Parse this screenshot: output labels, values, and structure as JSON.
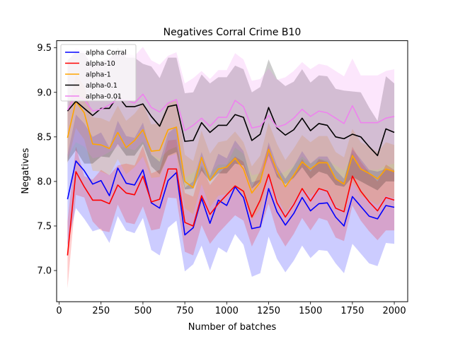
{
  "chart_data": {
    "type": "line",
    "title": "Negatives Corral Crime B10",
    "xlabel": "Number of batches",
    "ylabel": "Negatives",
    "xlim": [
      -15,
      2080
    ],
    "ylim": [
      6.65,
      9.58
    ],
    "xticks": [
      0,
      250,
      500,
      750,
      1000,
      1250,
      1500,
      1750,
      2000
    ],
    "yticks": [
      7.0,
      7.5,
      8.0,
      8.5,
      9.0,
      9.5
    ],
    "xtick_labels": [
      "0",
      "250",
      "500",
      "750",
      "1000",
      "1250",
      "1500",
      "1750",
      "2000"
    ],
    "ytick_labels": [
      "7.0",
      "7.5",
      "8.0",
      "8.5",
      "9.0",
      "9.5"
    ],
    "grid": false,
    "legend_position": "top-left",
    "shaded_band": "mean ± band per series",
    "x": [
      50,
      100,
      150,
      200,
      250,
      300,
      350,
      400,
      450,
      500,
      550,
      600,
      650,
      700,
      750,
      800,
      850,
      900,
      950,
      1000,
      1050,
      1100,
      1150,
      1200,
      1250,
      1300,
      1350,
      1400,
      1450,
      1500,
      1550,
      1600,
      1650,
      1700,
      1750,
      1800,
      1850,
      1900,
      1950,
      2000
    ],
    "series": [
      {
        "name": "alpha Corral",
        "color": "#0000ff",
        "values": [
          7.8,
          8.23,
          8.12,
          7.97,
          8.01,
          7.84,
          8.15,
          7.98,
          7.96,
          8.13,
          7.76,
          7.7,
          8.01,
          8.1,
          7.4,
          7.48,
          7.81,
          7.53,
          7.79,
          7.73,
          7.94,
          7.82,
          7.47,
          7.49,
          7.92,
          7.66,
          7.51,
          7.64,
          7.82,
          7.67,
          7.75,
          7.76,
          7.6,
          7.5,
          7.83,
          7.72,
          7.61,
          7.58,
          7.73,
          7.71
        ],
        "lower": [
          7.28,
          7.7,
          7.58,
          7.44,
          7.47,
          7.31,
          7.61,
          7.45,
          7.42,
          7.59,
          7.23,
          7.17,
          7.48,
          7.56,
          6.99,
          7.07,
          7.28,
          7.0,
          7.26,
          7.2,
          7.41,
          7.29,
          6.93,
          6.97,
          7.38,
          7.13,
          6.98,
          7.11,
          7.28,
          7.14,
          7.23,
          7.22,
          7.08,
          6.97,
          7.3,
          7.19,
          7.08,
          7.05,
          7.31,
          7.3
        ],
        "upper": [
          8.3,
          8.75,
          8.65,
          8.5,
          8.55,
          8.38,
          8.68,
          8.51,
          8.49,
          8.66,
          8.3,
          8.22,
          8.54,
          8.62,
          7.93,
          8.0,
          8.33,
          8.06,
          8.31,
          8.26,
          8.46,
          8.34,
          7.99,
          8.02,
          8.44,
          8.18,
          8.03,
          8.17,
          8.34,
          8.2,
          8.28,
          8.28,
          8.13,
          8.03,
          8.36,
          8.25,
          8.13,
          8.11,
          8.14,
          8.12
        ]
      },
      {
        "name": "alpha-10",
        "color": "#ff0000",
        "values": [
          7.17,
          8.11,
          7.94,
          7.79,
          7.79,
          7.75,
          7.96,
          7.87,
          7.85,
          8.06,
          7.77,
          7.8,
          8.14,
          8.14,
          7.54,
          7.5,
          7.84,
          7.63,
          7.75,
          7.85,
          7.95,
          7.89,
          7.6,
          7.79,
          8.08,
          7.76,
          7.6,
          7.74,
          7.92,
          7.78,
          7.92,
          7.89,
          7.7,
          7.66,
          8.06,
          7.89,
          7.77,
          7.67,
          7.82,
          7.79
        ],
        "lower": [
          6.8,
          7.85,
          7.82,
          7.55,
          7.45,
          7.43,
          7.74,
          7.54,
          7.52,
          7.72,
          7.45,
          7.47,
          7.82,
          7.81,
          7.21,
          7.17,
          7.51,
          7.3,
          7.42,
          7.52,
          7.62,
          7.56,
          7.27,
          7.46,
          7.75,
          7.43,
          7.27,
          7.41,
          7.59,
          7.45,
          7.59,
          7.56,
          7.37,
          7.33,
          7.73,
          7.56,
          7.44,
          7.34,
          7.45,
          7.45
        ],
        "upper": [
          7.55,
          8.39,
          8.06,
          8.02,
          8.13,
          8.07,
          8.18,
          8.2,
          8.18,
          8.4,
          8.09,
          8.13,
          8.46,
          8.47,
          7.87,
          7.83,
          8.17,
          7.96,
          8.08,
          8.18,
          8.28,
          8.22,
          7.93,
          8.12,
          8.41,
          8.09,
          7.93,
          8.07,
          8.25,
          8.11,
          8.25,
          8.22,
          8.03,
          7.99,
          8.39,
          8.22,
          8.1,
          8.0,
          8.19,
          8.13
        ]
      },
      {
        "name": "alpha-1",
        "color": "#ffa500",
        "values": [
          8.49,
          8.9,
          8.77,
          8.42,
          8.41,
          8.37,
          8.55,
          8.38,
          8.46,
          8.58,
          8.34,
          8.35,
          8.58,
          8.61,
          8.0,
          7.93,
          8.27,
          8.01,
          8.14,
          8.16,
          8.26,
          8.14,
          7.87,
          7.99,
          8.36,
          8.12,
          7.94,
          8.07,
          8.22,
          8.14,
          8.21,
          8.21,
          8.03,
          7.97,
          8.29,
          8.14,
          8.09,
          8.03,
          8.14,
          8.11
        ],
        "lower": [
          8.2,
          8.6,
          8.47,
          8.12,
          8.11,
          8.07,
          8.25,
          8.08,
          8.16,
          8.28,
          8.04,
          8.05,
          8.28,
          8.31,
          7.7,
          7.63,
          7.97,
          7.71,
          7.84,
          7.86,
          7.96,
          7.84,
          7.57,
          7.69,
          8.06,
          7.82,
          7.64,
          7.77,
          7.92,
          7.84,
          7.91,
          7.91,
          7.73,
          7.67,
          7.99,
          7.84,
          7.79,
          7.73,
          7.84,
          7.81
        ],
        "upper": [
          8.78,
          9.2,
          9.07,
          8.72,
          8.71,
          8.67,
          8.85,
          8.68,
          8.76,
          8.88,
          8.64,
          8.65,
          8.88,
          8.91,
          8.3,
          8.23,
          8.57,
          8.31,
          8.44,
          8.46,
          8.56,
          8.44,
          8.17,
          8.29,
          8.66,
          8.42,
          8.24,
          8.37,
          8.52,
          8.44,
          8.51,
          8.51,
          8.33,
          8.27,
          8.59,
          8.44,
          8.39,
          8.33,
          8.44,
          8.41
        ]
      },
      {
        "name": "alpha-0.1",
        "color": "#000000",
        "values": [
          8.79,
          8.9,
          8.82,
          8.74,
          8.82,
          8.82,
          8.96,
          8.84,
          8.84,
          8.87,
          8.73,
          8.62,
          8.84,
          8.86,
          8.45,
          8.46,
          8.66,
          8.55,
          8.63,
          8.63,
          8.75,
          8.72,
          8.46,
          8.53,
          8.83,
          8.6,
          8.52,
          8.58,
          8.71,
          8.57,
          8.65,
          8.63,
          8.5,
          8.48,
          8.53,
          8.5,
          8.39,
          8.29,
          8.59,
          8.55
        ],
        "lower": [
          8.22,
          8.35,
          8.2,
          8.2,
          8.28,
          8.27,
          8.42,
          8.29,
          8.29,
          8.42,
          8.17,
          8.08,
          8.29,
          8.33,
          7.91,
          7.92,
          8.12,
          8.0,
          8.09,
          8.09,
          8.2,
          8.18,
          7.92,
          8.0,
          8.29,
          8.05,
          7.97,
          8.04,
          8.16,
          8.03,
          8.11,
          8.08,
          7.96,
          7.94,
          8.05,
          8.0,
          7.95,
          7.9,
          8.0,
          8.0
        ],
        "upper": [
          9.36,
          9.45,
          9.44,
          9.28,
          9.36,
          9.37,
          9.5,
          9.39,
          9.39,
          9.32,
          9.29,
          9.16,
          9.39,
          9.39,
          8.99,
          9.0,
          9.2,
          9.1,
          9.17,
          9.17,
          9.3,
          9.26,
          9.0,
          9.06,
          9.37,
          9.15,
          9.07,
          9.12,
          9.26,
          9.11,
          9.19,
          9.18,
          9.04,
          9.02,
          9.01,
          9.0,
          8.83,
          8.68,
          9.18,
          9.1
        ]
      },
      {
        "name": "alpha-0.01",
        "color": "#ee82ee",
        "values": [
          8.8,
          8.97,
          8.92,
          8.79,
          8.81,
          8.86,
          8.92,
          8.91,
          8.88,
          8.98,
          8.83,
          8.78,
          8.88,
          8.92,
          8.57,
          8.63,
          8.71,
          8.62,
          8.72,
          8.72,
          8.91,
          8.84,
          8.6,
          8.62,
          8.74,
          8.61,
          8.64,
          8.71,
          8.81,
          8.73,
          8.79,
          8.77,
          8.71,
          8.65,
          8.85,
          8.66,
          8.66,
          8.66,
          8.71,
          8.73
        ],
        "lower": [
          8.27,
          8.44,
          8.39,
          8.26,
          8.28,
          8.33,
          8.39,
          8.38,
          8.35,
          8.45,
          8.3,
          8.25,
          8.35,
          8.39,
          8.04,
          8.1,
          8.18,
          8.09,
          8.19,
          8.19,
          8.38,
          8.31,
          8.07,
          8.09,
          8.21,
          8.08,
          8.11,
          8.18,
          8.28,
          8.2,
          8.26,
          8.24,
          8.18,
          8.12,
          8.32,
          8.13,
          8.13,
          8.13,
          8.18,
          8.2
        ],
        "upper": [
          9.33,
          9.5,
          9.45,
          9.32,
          9.34,
          9.39,
          9.45,
          9.44,
          9.41,
          9.51,
          9.36,
          9.31,
          9.41,
          9.45,
          9.1,
          9.16,
          9.24,
          9.15,
          9.25,
          9.25,
          9.44,
          9.37,
          9.13,
          9.15,
          9.27,
          9.14,
          9.17,
          9.24,
          9.34,
          9.26,
          9.32,
          9.3,
          9.24,
          9.18,
          9.38,
          9.19,
          9.19,
          9.19,
          9.24,
          9.26
        ]
      }
    ]
  }
}
